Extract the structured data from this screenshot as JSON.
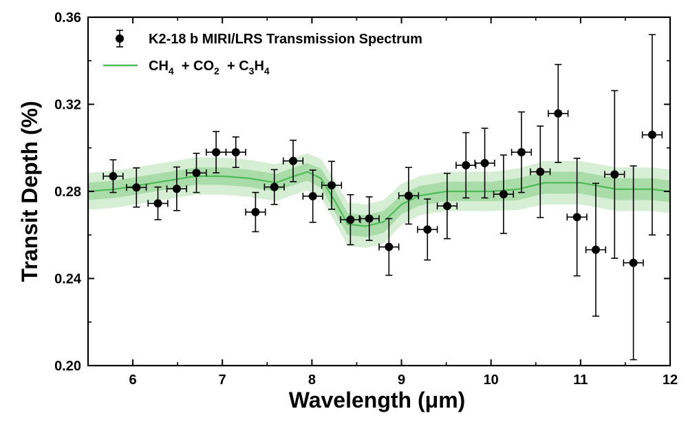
{
  "chart_data": {
    "type": "scatter",
    "title": "",
    "xlabel": "Wavelength (μm)",
    "ylabel": "Transit Depth (%)",
    "xlim": [
      5.5,
      12
    ],
    "ylim": [
      0.2,
      0.36
    ],
    "x_ticks": [
      6,
      7,
      8,
      9,
      10,
      11,
      12
    ],
    "y_ticks": [
      0.2,
      0.24,
      0.28,
      0.32,
      0.36
    ],
    "x_tick_labels": [
      "6",
      "7",
      "8",
      "9",
      "10",
      "11",
      "12"
    ],
    "y_tick_labels": [
      "0.20",
      "0.24",
      "0.28",
      "0.32",
      "0.36"
    ],
    "legend_position": "top-left",
    "colors": {
      "data": "#000000",
      "model_line": "#4dbb56",
      "band_1sigma": "#a9dca9",
      "band_2sigma": "#d6eed4"
    },
    "series": [
      {
        "name": "K2-18 b MIRI/LRS Transmission Spectrum",
        "kind": "errorbar",
        "x": [
          5.78,
          6.04,
          6.28,
          6.49,
          6.71,
          6.93,
          7.15,
          7.37,
          7.58,
          7.79,
          8.01,
          8.22,
          8.43,
          8.64,
          8.86,
          9.08,
          9.29,
          9.51,
          9.72,
          9.93,
          10.14,
          10.34,
          10.55,
          10.75,
          10.96,
          11.17,
          11.38,
          11.59,
          11.8
        ],
        "xerr": [
          0.11,
          0.11,
          0.11,
          0.11,
          0.11,
          0.11,
          0.11,
          0.11,
          0.11,
          0.11,
          0.11,
          0.11,
          0.11,
          0.11,
          0.11,
          0.11,
          0.11,
          0.11,
          0.11,
          0.11,
          0.11,
          0.11,
          0.11,
          0.11,
          0.11,
          0.11,
          0.11,
          0.11,
          0.11
        ],
        "y": [
          0.287,
          0.2818,
          0.2745,
          0.2812,
          0.2885,
          0.298,
          0.298,
          0.2705,
          0.282,
          0.294,
          0.2778,
          0.2828,
          0.267,
          0.2675,
          0.2545,
          0.278,
          0.2625,
          0.2733,
          0.292,
          0.293,
          0.2787,
          0.298,
          0.289,
          0.3158,
          0.2682,
          0.2532,
          0.2878,
          0.2472,
          0.306
        ],
        "yerr": [
          0.0075,
          0.009,
          0.0075,
          0.01,
          0.009,
          0.0095,
          0.007,
          0.009,
          0.008,
          0.0095,
          0.012,
          0.011,
          0.0115,
          0.01,
          0.013,
          0.013,
          0.014,
          0.015,
          0.015,
          0.016,
          0.018,
          0.0185,
          0.021,
          0.0225,
          0.027,
          0.0305,
          0.0385,
          0.0445,
          0.046
        ]
      },
      {
        "name": "CH4 + CO2 + C3H4",
        "kind": "model",
        "x": [
          5.5,
          5.8,
          6.1,
          6.4,
          6.7,
          7.0,
          7.3,
          7.6,
          7.8,
          7.95,
          8.1,
          8.25,
          8.4,
          8.6,
          8.8,
          9.0,
          9.2,
          9.5,
          10.0,
          10.3,
          10.6,
          11.0,
          11.4,
          11.8,
          12.0
        ],
        "y": [
          0.28,
          0.281,
          0.283,
          0.285,
          0.287,
          0.287,
          0.286,
          0.284,
          0.287,
          0.289,
          0.286,
          0.276,
          0.265,
          0.264,
          0.266,
          0.274,
          0.278,
          0.28,
          0.28,
          0.281,
          0.284,
          0.284,
          0.281,
          0.281,
          0.28
        ],
        "sigma1": [
          0.004,
          0.004,
          0.004,
          0.004,
          0.004,
          0.004,
          0.004,
          0.004,
          0.004,
          0.004,
          0.0045,
          0.005,
          0.005,
          0.005,
          0.005,
          0.0045,
          0.0045,
          0.0045,
          0.0045,
          0.005,
          0.005,
          0.005,
          0.005,
          0.005,
          0.005
        ],
        "sigma2": [
          0.0085,
          0.0085,
          0.0085,
          0.0085,
          0.0085,
          0.0085,
          0.0085,
          0.0085,
          0.0085,
          0.0085,
          0.009,
          0.0095,
          0.01,
          0.01,
          0.01,
          0.0095,
          0.009,
          0.009,
          0.009,
          0.0095,
          0.01,
          0.01,
          0.01,
          0.01,
          0.01
        ]
      }
    ],
    "legend": {
      "entries": [
        {
          "label": "K2-18 b MIRI/LRS Transmission Spectrum"
        },
        {
          "label_parts": [
            {
              "text": "CH",
              "sub": false
            },
            {
              "text": "4",
              "sub": true
            },
            {
              "text": "  + CO",
              "sub": false
            },
            {
              "text": "2",
              "sub": true
            },
            {
              "text": "  + C",
              "sub": false
            },
            {
              "text": "3",
              "sub": true
            },
            {
              "text": "H",
              "sub": false
            },
            {
              "text": "4",
              "sub": true
            }
          ]
        }
      ]
    }
  }
}
